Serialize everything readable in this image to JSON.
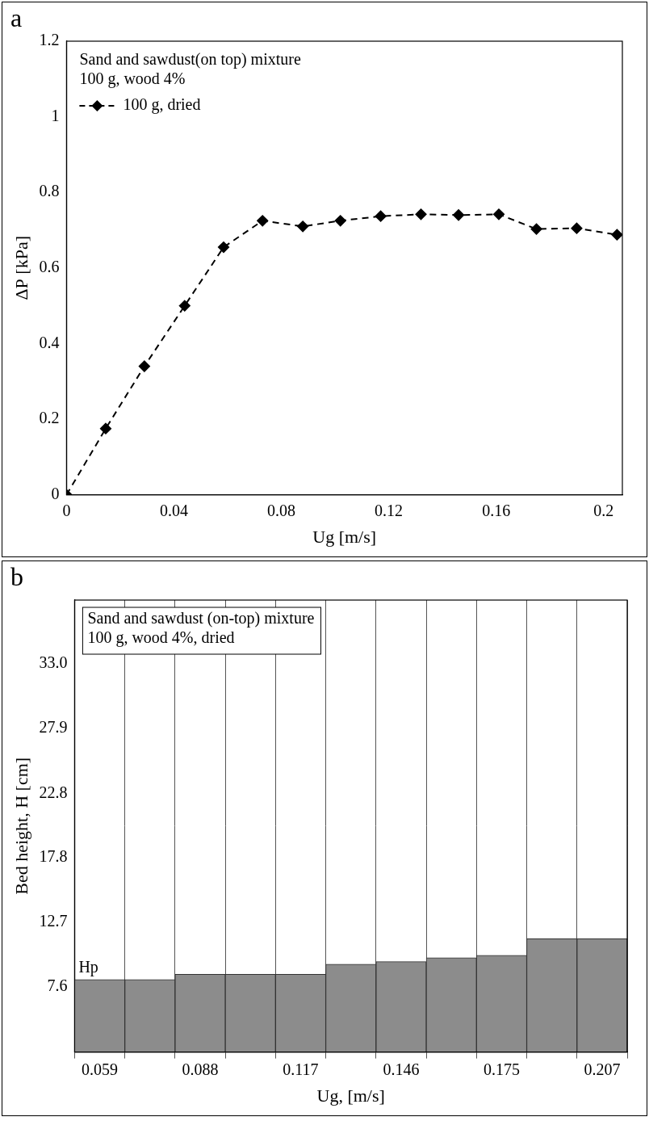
{
  "chart_data": [
    {
      "type": "line",
      "panel_label": "a",
      "annotations": [
        "Sand and sawdust(on top) mixture",
        "100 g, wood 4%"
      ],
      "x_label": "Ug [m/s]",
      "y_label": "ΔP [kPa]",
      "x": [
        0,
        0.0146,
        0.029,
        0.044,
        0.0585,
        0.073,
        0.088,
        0.102,
        0.117,
        0.132,
        0.146,
        0.161,
        0.175,
        0.19,
        0.205
      ],
      "series": [
        {
          "name": "100 g, dried",
          "color": "#000000",
          "marker": "diamond",
          "line_style": "dashed",
          "values": [
            0,
            0.175,
            0.34,
            0.5,
            0.655,
            0.725,
            0.71,
            0.725,
            0.737,
            0.742,
            0.74,
            0.742,
            0.703,
            0.705,
            0.688
          ]
        }
      ],
      "xlim": [
        0,
        0.207
      ],
      "xticks": [
        0,
        0.04,
        0.08,
        0.12,
        0.16,
        0.2
      ],
      "ylim": [
        0,
        1.2
      ],
      "yticks": [
        0,
        0.2,
        0.4,
        0.6,
        0.8,
        1,
        1.2
      ],
      "grid": false,
      "legend": "upper left"
    },
    {
      "type": "bar",
      "panel_label": "b",
      "annotations": [
        "Sand and sawdust (on-top) mixture",
        "100 g, wood 4%, dried"
      ],
      "annotation": "Hp",
      "x_label": "Ug, [m/s]",
      "y_label": "Bed height, H [cm]",
      "categories": [
        "0.059",
        null,
        "0.088",
        null,
        "0.117",
        null,
        "0.146",
        null,
        "0.175",
        null,
        "0.207"
      ],
      "values": [
        8.2,
        8.2,
        8.6,
        8.6,
        8.6,
        9.4,
        9.6,
        9.9,
        10.1,
        11.4,
        11.4
      ],
      "color": "#8c8c8c",
      "ylim": [
        2.5,
        38
      ],
      "yticks": [
        7.6,
        12.7,
        17.8,
        22.8,
        27.9,
        {
          "value": 33,
          "label": "33.0"
        }
      ],
      "grid": true
    }
  ]
}
